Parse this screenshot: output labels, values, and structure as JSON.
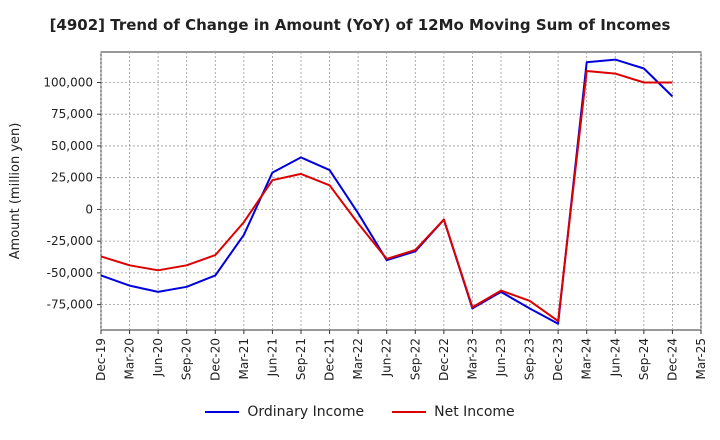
{
  "chart_data": {
    "type": "line",
    "title": "[4902]  Trend of Change in Amount (YoY) of 12Mo Moving Sum of Incomes",
    "xlabel": "",
    "ylabel": "Amount (million yen)",
    "x_ticks": [
      "Dec-19",
      "Mar-20",
      "Jun-20",
      "Sep-20",
      "Dec-20",
      "Mar-21",
      "Jun-21",
      "Sep-21",
      "Dec-21",
      "Mar-22",
      "Jun-22",
      "Sep-22",
      "Dec-22",
      "Mar-23",
      "Jun-23",
      "Sep-23",
      "Dec-23",
      "Mar-24",
      "Jun-24",
      "Sep-24",
      "Dec-24",
      "Mar-25"
    ],
    "y_ticks": [
      100000,
      75000,
      50000,
      25000,
      0,
      -25000,
      -50000,
      -75000
    ],
    "y_tick_labels": [
      "100,000",
      "75,000",
      "50,000",
      "25,000",
      "0",
      "-25,000",
      "-50,000",
      "-75,000"
    ],
    "ylim": [
      -95000,
      124000
    ],
    "grid": true,
    "legend_position": "bottom",
    "series": [
      {
        "name": "Ordinary Income",
        "color": "#0000dd",
        "x": [
          "Dec-19",
          "Mar-20",
          "Jun-20",
          "Sep-20",
          "Dec-20",
          "Mar-21",
          "Jun-21",
          "Sep-21",
          "Dec-21",
          "Mar-22",
          "Jun-22",
          "Sep-22",
          "Dec-22",
          "Mar-23",
          "Jun-23",
          "Sep-23",
          "Dec-23",
          "Mar-24",
          "Jun-24",
          "Sep-24",
          "Dec-24"
        ],
        "values": [
          -52000,
          -60000,
          -65000,
          -61000,
          -52000,
          -20000,
          29000,
          41000,
          31000,
          -3000,
          -40000,
          -33000,
          -8000,
          -78000,
          -65000,
          -78000,
          -90000,
          116000,
          118000,
          111000,
          89000
        ]
      },
      {
        "name": "Net Income",
        "color": "#dd0000",
        "x": [
          "Dec-19",
          "Mar-20",
          "Jun-20",
          "Sep-20",
          "Dec-20",
          "Mar-21",
          "Jun-21",
          "Sep-21",
          "Dec-21",
          "Mar-22",
          "Jun-22",
          "Sep-22",
          "Dec-22",
          "Mar-23",
          "Jun-23",
          "Sep-23",
          "Dec-23",
          "Mar-24",
          "Jun-24",
          "Sep-24",
          "Dec-24"
        ],
        "values": [
          -37000,
          -44000,
          -48000,
          -44000,
          -36000,
          -10000,
          23000,
          28000,
          19000,
          -11000,
          -39000,
          -32000,
          -8000,
          -77000,
          -64000,
          -72000,
          -88000,
          109000,
          107000,
          100000,
          100000
        ]
      }
    ]
  }
}
